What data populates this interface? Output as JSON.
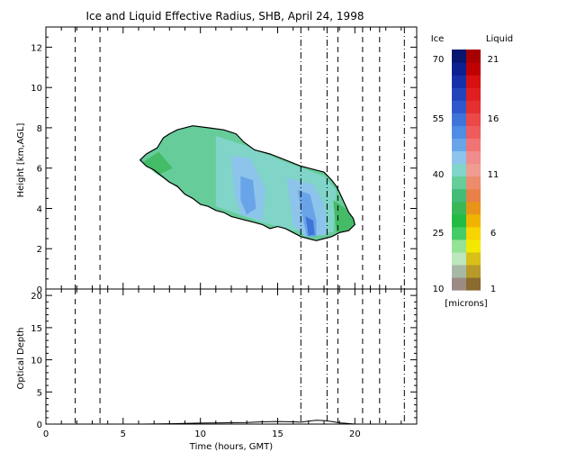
{
  "chart_data": {
    "title": "Ice and Liquid Effective Radius, SHB, April 24, 1998",
    "panels": [
      {
        "type": "heatmap",
        "ylabel": "Height [km,AGL]",
        "ylim": [
          0,
          13
        ],
        "yticks": [
          0,
          2,
          4,
          6,
          8,
          10,
          12
        ],
        "grid": false,
        "cloud_outline_top": [
          [
            6.1,
            6.4
          ],
          [
            6.5,
            6.7
          ],
          [
            7.2,
            7.0
          ],
          [
            7.6,
            7.5
          ],
          [
            8.0,
            7.7
          ],
          [
            8.5,
            7.9
          ],
          [
            9.0,
            8.0
          ],
          [
            9.5,
            8.1
          ],
          [
            10.5,
            8.0
          ],
          [
            11.5,
            7.9
          ],
          [
            12.3,
            7.7
          ],
          [
            12.8,
            7.3
          ],
          [
            13.5,
            6.9
          ],
          [
            14.5,
            6.7
          ],
          [
            15.5,
            6.4
          ],
          [
            16.5,
            6.1
          ],
          [
            17.0,
            6.0
          ],
          [
            17.5,
            5.9
          ],
          [
            18.0,
            5.8
          ],
          [
            18.5,
            5.4
          ],
          [
            18.8,
            5.1
          ],
          [
            19.0,
            4.8
          ],
          [
            19.3,
            4.3
          ],
          [
            19.6,
            3.8
          ],
          [
            19.9,
            3.5
          ],
          [
            20.0,
            3.2
          ]
        ],
        "cloud_outline_bottom": [
          [
            20.0,
            3.2
          ],
          [
            19.6,
            2.9
          ],
          [
            19.0,
            2.8
          ],
          [
            18.5,
            2.6
          ],
          [
            18.0,
            2.5
          ],
          [
            17.5,
            2.4
          ],
          [
            17.0,
            2.5
          ],
          [
            16.5,
            2.6
          ],
          [
            16.0,
            2.8
          ],
          [
            15.5,
            3.0
          ],
          [
            15.0,
            3.1
          ],
          [
            14.5,
            3.0
          ],
          [
            14.0,
            3.2
          ],
          [
            13.5,
            3.3
          ],
          [
            13.0,
            3.4
          ],
          [
            12.5,
            3.5
          ],
          [
            12.0,
            3.6
          ],
          [
            11.5,
            3.8
          ],
          [
            11.0,
            3.9
          ],
          [
            10.5,
            4.1
          ],
          [
            10.0,
            4.2
          ],
          [
            9.5,
            4.5
          ],
          [
            9.0,
            4.7
          ],
          [
            8.5,
            5.1
          ],
          [
            8.0,
            5.3
          ],
          [
            7.5,
            5.6
          ],
          [
            7.0,
            5.9
          ],
          [
            6.5,
            6.1
          ],
          [
            6.1,
            6.4
          ]
        ],
        "cloud_regions": [
          {
            "level": "ice_40",
            "color": "#66cc99",
            "polygon": [
              [
                6.5,
                6.2
              ],
              [
                8.0,
                7.4
              ],
              [
                10.0,
                7.8
              ],
              [
                11.0,
                7.2
              ],
              [
                11.0,
                4.2
              ],
              [
                9.0,
                4.8
              ],
              [
                7.0,
                5.8
              ]
            ]
          },
          {
            "level": "ice_45",
            "color": "#80d4c8",
            "polygon": [
              [
                11.0,
                7.6
              ],
              [
                13.0,
                7.1
              ],
              [
                15.5,
                6.3
              ],
              [
                18.0,
                5.6
              ],
              [
                18.8,
                4.9
              ],
              [
                18.6,
                2.8
              ],
              [
                16.0,
                2.9
              ],
              [
                14.0,
                3.3
              ],
              [
                11.0,
                4.1
              ]
            ]
          },
          {
            "level": "ice_50",
            "color": "#8cc4ec",
            "polygon": [
              [
                12.0,
                6.6
              ],
              [
                13.2,
                6.5
              ],
              [
                14.2,
                5.0
              ],
              [
                14.0,
                3.4
              ],
              [
                12.6,
                3.7
              ],
              [
                12.2,
                4.8
              ]
            ]
          },
          {
            "level": "ice_55",
            "color": "#6aa4e8",
            "polygon": [
              [
                12.6,
                5.6
              ],
              [
                13.4,
                5.4
              ],
              [
                13.6,
                4.0
              ],
              [
                13.0,
                3.7
              ],
              [
                12.6,
                4.4
              ]
            ]
          },
          {
            "level": "ice_50",
            "color": "#8cc4ec",
            "polygon": [
              [
                15.6,
                5.5
              ],
              [
                17.3,
                5.2
              ],
              [
                18.0,
                4.2
              ],
              [
                18.2,
                2.7
              ],
              [
                16.8,
                2.6
              ],
              [
                16.0,
                3.2
              ]
            ]
          },
          {
            "level": "ice_55",
            "color": "#6aa4e8",
            "polygon": [
              [
                16.3,
                4.9
              ],
              [
                17.1,
                4.7
              ],
              [
                17.5,
                3.4
              ],
              [
                17.5,
                2.6
              ],
              [
                16.9,
                2.6
              ],
              [
                16.6,
                3.6
              ]
            ]
          },
          {
            "level": "ice_60",
            "color": "#3f74d8",
            "polygon": [
              [
                16.8,
                3.6
              ],
              [
                17.3,
                3.4
              ],
              [
                17.4,
                2.7
              ],
              [
                17.0,
                2.65
              ]
            ]
          },
          {
            "level": "ice_35",
            "color": "#44bb66",
            "polygon": [
              [
                18.6,
                4.4
              ],
              [
                19.4,
                4.0
              ],
              [
                20.0,
                3.3
              ],
              [
                19.6,
                2.9
              ],
              [
                18.8,
                2.8
              ]
            ]
          },
          {
            "level": "ice_35",
            "color": "#44bb66",
            "polygon": [
              [
                6.3,
                6.3
              ],
              [
                7.3,
                6.8
              ],
              [
                8.2,
                6.0
              ],
              [
                7.4,
                5.7
              ],
              [
                6.5,
                6.1
              ]
            ]
          }
        ]
      },
      {
        "type": "line",
        "ylabel": "Optical Depth",
        "ylim": [
          0,
          21
        ],
        "yticks": [
          0,
          5,
          10,
          15,
          20
        ],
        "series": [
          {
            "x": [
              6.2,
              8.0,
              10.0,
              11.5,
              13.0,
              14.0,
              15.0,
              16.0,
              16.5,
              17.0,
              17.5,
              18.0,
              18.5,
              19.0,
              19.5,
              20.0
            ],
            "y": [
              0.0,
              0.05,
              0.15,
              0.2,
              0.25,
              0.35,
              0.4,
              0.35,
              0.3,
              0.45,
              0.6,
              0.55,
              0.4,
              0.2,
              0.1,
              0.0
            ]
          }
        ]
      }
    ],
    "xlabel": "Time (hours, GMT)",
    "xlim": [
      0,
      24
    ],
    "xticks": [
      0,
      5,
      10,
      15,
      20
    ],
    "vertical_markers": [
      {
        "x": 1.9,
        "style": "dashed"
      },
      {
        "x": 3.5,
        "style": "dashed"
      },
      {
        "x": 16.5,
        "style": "dash-dot"
      },
      {
        "x": 18.2,
        "style": "dash-dot"
      },
      {
        "x": 18.9,
        "style": "dashed"
      },
      {
        "x": 20.5,
        "style": "dashed"
      },
      {
        "x": 21.6,
        "style": "dashed"
      },
      {
        "x": 23.2,
        "style": "dash-dot"
      }
    ],
    "colorbar": {
      "ice_label": "Ice",
      "liquid_label": "Liquid",
      "units_label": "[microns]",
      "ice_ticks": [
        "70",
        "55",
        "40",
        "25",
        "10"
      ],
      "liquid_ticks": [
        "21",
        "16",
        "11",
        "6",
        "1"
      ],
      "ice_colors": [
        "#9c8a84",
        "#a8b8a6",
        "#bce6bc",
        "#96e296",
        "#44cc66",
        "#22bb44",
        "#3ab858",
        "#44bb77",
        "#66cc99",
        "#80d4c8",
        "#8cc4ec",
        "#6aa4e8",
        "#4f8ce4",
        "#3f74d8",
        "#2f58cc",
        "#2244bb",
        "#1630a8",
        "#0c2090",
        "#081670"
      ],
      "liquid_colors": [
        "#8a6b30",
        "#b89a28",
        "#d8c018",
        "#f4e800",
        "#f8d400",
        "#f0b400",
        "#e89418",
        "#e88048",
        "#ec8c6c",
        "#f09c90",
        "#f08c8c",
        "#f07474",
        "#ee5c5c",
        "#ec4848",
        "#e63030",
        "#e02020",
        "#d81010",
        "#c00000",
        "#a80000"
      ]
    }
  }
}
